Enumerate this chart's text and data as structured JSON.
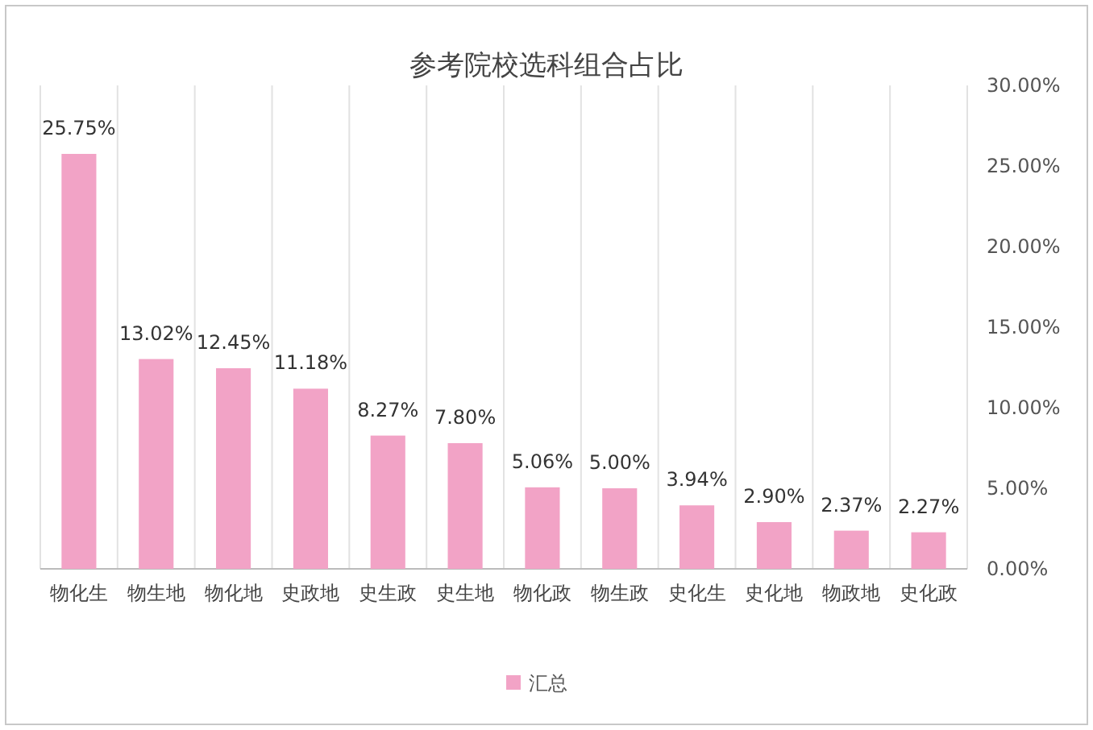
{
  "chart_data": {
    "type": "bar",
    "title": "参考院校选科组合占比",
    "categories": [
      "物化生",
      "物生地",
      "物化地",
      "史政地",
      "史生政",
      "史生地",
      "物化政",
      "物生政",
      "史化生",
      "史化地",
      "物政地",
      "史化政"
    ],
    "series": [
      {
        "name": "汇总",
        "color": "#f2a3c6",
        "values": [
          25.75,
          13.02,
          12.45,
          11.18,
          8.27,
          7.8,
          5.06,
          5.0,
          3.94,
          2.9,
          2.37,
          2.27
        ],
        "value_labels": [
          "25.75%",
          "13.02%",
          "12.45%",
          "11.18%",
          "8.27%",
          "7.80%",
          "5.06%",
          "5.00%",
          "3.94%",
          "2.90%",
          "2.37%",
          "2.27%"
        ]
      }
    ],
    "ylim": [
      0,
      30
    ],
    "yticks": [
      {
        "value": 0,
        "label": "0.00%"
      },
      {
        "value": 5,
        "label": "5.00%"
      },
      {
        "value": 10,
        "label": "10.00%"
      },
      {
        "value": 15,
        "label": "15.00%"
      },
      {
        "value": 20,
        "label": "20.00%"
      },
      {
        "value": 25,
        "label": "25.00%"
      },
      {
        "value": 30,
        "label": "30.00%"
      }
    ],
    "grid": "x",
    "legend": "bottom"
  }
}
